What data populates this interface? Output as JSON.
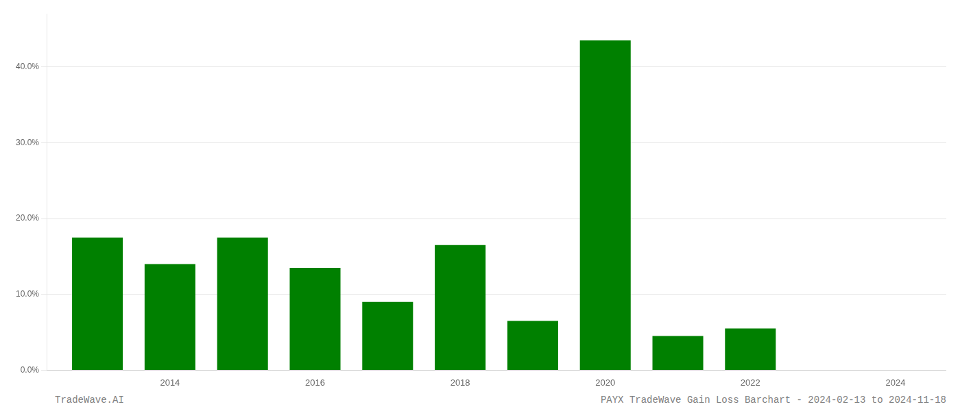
{
  "chart_data": {
    "type": "bar",
    "x": [
      2013,
      2014,
      2015,
      2016,
      2017,
      2018,
      2019,
      2020,
      2021,
      2022,
      2023
    ],
    "values": [
      17.5,
      14.0,
      17.5,
      13.5,
      9.0,
      16.5,
      6.5,
      43.5,
      4.5,
      5.5,
      0.0
    ],
    "color": "#008000",
    "xlim": [
      2012.3,
      2024.7
    ],
    "xticks": [
      2014,
      2016,
      2018,
      2020,
      2022,
      2024
    ],
    "ylim": [
      0,
      47
    ],
    "yticks": [
      {
        "value": 0.0,
        "label": "0.0%"
      },
      {
        "value": 10.0,
        "label": "10.0%"
      },
      {
        "value": 20.0,
        "label": "20.0%"
      },
      {
        "value": 30.0,
        "label": "30.0%"
      },
      {
        "value": 40.0,
        "label": "40.0%"
      }
    ],
    "grid": true,
    "annotations": [
      "TradeWave.AI",
      "PAYX TradeWave Gain Loss Barchart - 2024-02-13 to 2024-11-18"
    ]
  }
}
